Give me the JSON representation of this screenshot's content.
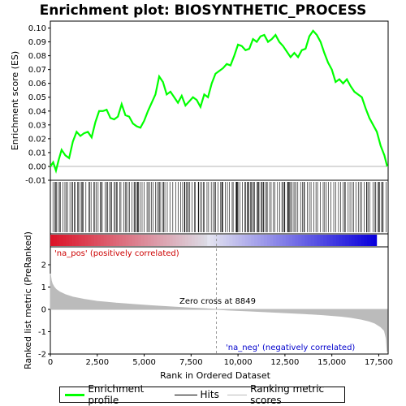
{
  "chart_data": {
    "type": "line",
    "title": "Enrichment plot: BIOSYNTHETIC_PROCESS",
    "top_panel": {
      "ylabel": "Enrichment score (ES)",
      "ylim": [
        -0.01,
        0.105
      ],
      "yticks": [
        "-0.01",
        "0.00",
        "0.01",
        "0.02",
        "0.03",
        "0.04",
        "0.05",
        "0.06",
        "0.07",
        "0.08",
        "0.09",
        "0.10"
      ],
      "series": [
        {
          "name": "Enrichment profile",
          "color": "#00ff00",
          "x": [
            0,
            150,
            300,
            450,
            600,
            800,
            1000,
            1200,
            1400,
            1600,
            1800,
            2000,
            2200,
            2400,
            2600,
            2800,
            3000,
            3200,
            3400,
            3600,
            3800,
            4000,
            4200,
            4400,
            4600,
            4800,
            5000,
            5200,
            5400,
            5600,
            5800,
            6000,
            6200,
            6400,
            6600,
            6800,
            7000,
            7200,
            7400,
            7600,
            7800,
            8000,
            8200,
            8400,
            8600,
            8800,
            9000,
            9200,
            9400,
            9600,
            9800,
            10000,
            10200,
            10400,
            10600,
            10800,
            11000,
            11200,
            11400,
            11600,
            11800,
            12000,
            12200,
            12400,
            12600,
            12800,
            13000,
            13200,
            13400,
            13600,
            13800,
            14000,
            14200,
            14400,
            14600,
            14800,
            15000,
            15200,
            15400,
            15600,
            15800,
            16000,
            16200,
            16400,
            16600,
            16800,
            17000,
            17200,
            17400,
            17600,
            17800,
            17950
          ],
          "y": [
            0.0,
            0.003,
            -0.003,
            0.005,
            0.012,
            0.008,
            0.006,
            0.018,
            0.025,
            0.022,
            0.024,
            0.025,
            0.021,
            0.032,
            0.04,
            0.04,
            0.041,
            0.035,
            0.034,
            0.036,
            0.045,
            0.037,
            0.036,
            0.031,
            0.029,
            0.028,
            0.033,
            0.04,
            0.046,
            0.052,
            0.065,
            0.061,
            0.052,
            0.054,
            0.05,
            0.046,
            0.051,
            0.044,
            0.047,
            0.05,
            0.048,
            0.043,
            0.052,
            0.05,
            0.06,
            0.067,
            0.069,
            0.071,
            0.074,
            0.073,
            0.08,
            0.088,
            0.087,
            0.084,
            0.085,
            0.092,
            0.09,
            0.094,
            0.095,
            0.09,
            0.092,
            0.095,
            0.09,
            0.087,
            0.083,
            0.079,
            0.082,
            0.079,
            0.084,
            0.085,
            0.094,
            0.098,
            0.095,
            0.09,
            0.082,
            0.075,
            0.07,
            0.061,
            0.063,
            0.06,
            0.063,
            0.058,
            0.054,
            0.052,
            0.05,
            0.042,
            0.035,
            0.03,
            0.025,
            0.015,
            0.008,
            0.0
          ]
        }
      ]
    },
    "bottom_panel": {
      "ylabel": "Ranked list metric (PreRanked)",
      "xlabel": "Rank in Ordered Dataset",
      "ylim": [
        -2,
        2.8
      ],
      "yticks": [
        "-2",
        "-1",
        "0",
        "1",
        "2"
      ],
      "xlim": [
        0,
        18000
      ],
      "xticks": [
        "0",
        "2,500",
        "5,000",
        "7,500",
        "10,000",
        "12,500",
        "15,000",
        "17,500"
      ],
      "zero_cross_text": "Zero cross at 8849",
      "zero_cross_rank": 8849,
      "pos_label": "'na_pos' (positively correlated)",
      "neg_label": "'na_neg' (negatively correlated)",
      "metric_series": {
        "name": "Ranking metric scores",
        "color": "#bbbbbb",
        "x": [
          0,
          50,
          100,
          200,
          300,
          500,
          800,
          1200,
          1800,
          2500,
          3500,
          4500,
          5500,
          6500,
          7500,
          8500,
          8849,
          9500,
          10500,
          11500,
          12500,
          13500,
          14500,
          15500,
          16000,
          16500,
          17000,
          17300,
          17600,
          17800,
          17900,
          17950
        ],
        "y": [
          1.6,
          1.3,
          1.15,
          1.0,
          0.9,
          0.78,
          0.66,
          0.55,
          0.45,
          0.36,
          0.28,
          0.22,
          0.16,
          0.11,
          0.06,
          0.02,
          0.0,
          -0.03,
          -0.07,
          -0.11,
          -0.15,
          -0.19,
          -0.24,
          -0.31,
          -0.36,
          -0.43,
          -0.53,
          -0.62,
          -0.78,
          -0.95,
          -1.3,
          -1.9
        ]
      }
    },
    "legend": {
      "items": [
        {
          "label": "Enrichment profile",
          "color": "#00ff00"
        },
        {
          "label": "Hits",
          "color": "#000000"
        },
        {
          "label": "Ranking metric scores",
          "color": "#bbbbbb"
        }
      ]
    },
    "hits_bar": {
      "color": "#000000"
    },
    "colors": {
      "pos_text": "#cc0000",
      "neg_text": "#0000cc",
      "zero_line": "#999999"
    }
  }
}
